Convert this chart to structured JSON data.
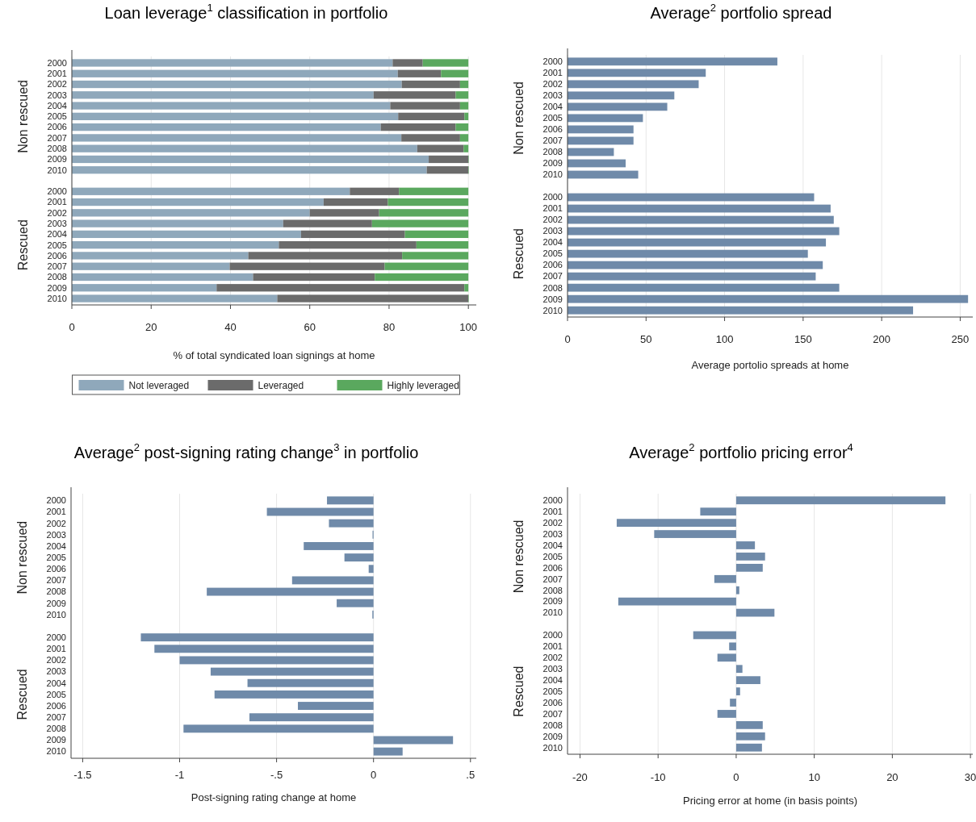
{
  "chart_data": [
    {
      "type": "bar",
      "orientation": "horizontal",
      "stacked": true,
      "title": "Loan leverage$^{1}$ classification in portfolio",
      "xlabel": "% of total syndicated loan signings at home",
      "categories": [
        "2000",
        "2001",
        "2002",
        "2003",
        "2004",
        "2005",
        "2006",
        "2007",
        "2008",
        "2009",
        "2010",
        null,
        "2000",
        "2001",
        "2002",
        "2003",
        "2004",
        "2005",
        "2006",
        "2007",
        "2008",
        "2009",
        "2010"
      ],
      "annotations": [
        "Non rescued",
        "Rescued"
      ],
      "xlim": [
        0,
        102
      ],
      "xticks": [
        0,
        20,
        40,
        60,
        80,
        100
      ],
      "grid": "x",
      "legend": "bottom",
      "series": [
        {
          "name": "Not leveraged",
          "color": "#8fa8bb",
          "values": [
            80.9,
            82.2,
            83.2,
            76.1,
            80.3,
            82.3,
            77.9,
            83.1,
            87.1,
            90.0,
            89.5,
            null,
            70.1,
            63.5,
            60.0,
            53.3,
            57.8,
            52.2,
            44.5,
            39.8,
            45.7,
            36.5,
            51.8
          ]
        },
        {
          "name": "Leveraged",
          "color": "#6b6b6b",
          "values": [
            7.6,
            10.9,
            14.7,
            20.7,
            17.6,
            16.7,
            18.9,
            14.8,
            11.7,
            10.0,
            10.5,
            null,
            12.4,
            16.2,
            17.5,
            22.4,
            26.2,
            34.7,
            38.8,
            39.1,
            30.7,
            62.5,
            48.2
          ]
        },
        {
          "name": "Highly leveraged",
          "color": "#5aa85e",
          "values": [
            11.5,
            6.9,
            2.1,
            3.2,
            2.1,
            1.0,
            3.2,
            2.1,
            1.2,
            0,
            0,
            null,
            17.5,
            20.3,
            22.5,
            24.3,
            16.0,
            13.1,
            16.7,
            21.1,
            23.6,
            1.0,
            0
          ]
        }
      ]
    },
    {
      "type": "bar",
      "orientation": "horizontal",
      "title": "Average$^{2}$ portfolio spread",
      "xlabel": "Average portolio spreads at home",
      "categories": [
        "2000",
        "2001",
        "2002",
        "2003",
        "2004",
        "2005",
        "2006",
        "2007",
        "2008",
        "2009",
        "2010",
        null,
        "2000",
        "2001",
        "2002",
        "2003",
        "2004",
        "2005",
        "2006",
        "2007",
        "2008",
        "2009",
        "2010"
      ],
      "annotations": [
        "Non rescued",
        "Rescued"
      ],
      "xlim": [
        0,
        258
      ],
      "xticks": [
        0,
        50,
        100,
        150,
        200,
        250
      ],
      "grid": "x",
      "series": [
        {
          "color": "#6f8aa9",
          "values": [
            133.6,
            88,
            83.5,
            68,
            63.5,
            48,
            42,
            42,
            29.5,
            37,
            45,
            null,
            157,
            167.5,
            169.5,
            173,
            164.5,
            153,
            162.5,
            158,
            173,
            255,
            220
          ]
        }
      ]
    },
    {
      "type": "bar",
      "orientation": "horizontal",
      "title": "Average$^{2}$ post-signing rating change$^{3}$ in portfolio",
      "xlabel": "Post-signing rating change at home",
      "categories": [
        "2000",
        "2001",
        "2002",
        "2003",
        "2004",
        "2005",
        "2006",
        "2007",
        "2008",
        "2009",
        "2010",
        null,
        "2000",
        "2001",
        "2002",
        "2003",
        "2004",
        "2005",
        "2006",
        "2007",
        "2008",
        "2009",
        "2010"
      ],
      "annotations": [
        "Non rescued",
        "Rescued"
      ],
      "xlim": [
        -1.56,
        0.53
      ],
      "xticks": [
        {
          "value": -1.5,
          "label": "-1.5"
        },
        {
          "value": -1,
          "label": "-1"
        },
        {
          "value": -0.5,
          "label": "-.5"
        },
        {
          "value": 0,
          "label": "0"
        },
        {
          "value": 0.5,
          "label": ".5"
        }
      ],
      "grid": "x",
      "series": [
        {
          "color": "#6f8aa9",
          "values": [
            -0.24,
            -0.55,
            -0.23,
            -0.005,
            -0.36,
            -0.15,
            -0.025,
            -0.42,
            -0.86,
            -0.19,
            -0.006,
            null,
            -1.2,
            -1.13,
            -1.0,
            -0.84,
            -0.65,
            -0.82,
            -0.39,
            -0.64,
            -0.98,
            0.41,
            0.15
          ]
        }
      ]
    },
    {
      "type": "bar",
      "orientation": "horizontal",
      "title": "Average$^{2}$ portfolio pricing error$^{4}$",
      "xlabel": "Pricing error at home (in basis points)",
      "categories": [
        "2000",
        "2001",
        "2002",
        "2003",
        "2004",
        "2005",
        "2006",
        "2007",
        "2008",
        "2009",
        "2010",
        null,
        "2000",
        "2001",
        "2002",
        "2003",
        "2004",
        "2005",
        "2006",
        "2007",
        "2008",
        "2009",
        "2010"
      ],
      "annotations": [
        "Non rescued",
        "Rescued"
      ],
      "xlim": [
        -21.6,
        30.3
      ],
      "xticks": [
        -20,
        -10,
        0,
        10,
        20,
        30
      ],
      "grid": "x",
      "series": [
        {
          "color": "#6f8aa9",
          "values": [
            26.8,
            -4.6,
            -15.3,
            -10.5,
            2.4,
            3.7,
            3.4,
            -2.8,
            0.4,
            -15.1,
            4.9,
            null,
            -5.5,
            -0.9,
            -2.4,
            0.8,
            3.1,
            0.5,
            -0.8,
            -2.4,
            3.4,
            3.7,
            3.3
          ]
        }
      ]
    }
  ]
}
